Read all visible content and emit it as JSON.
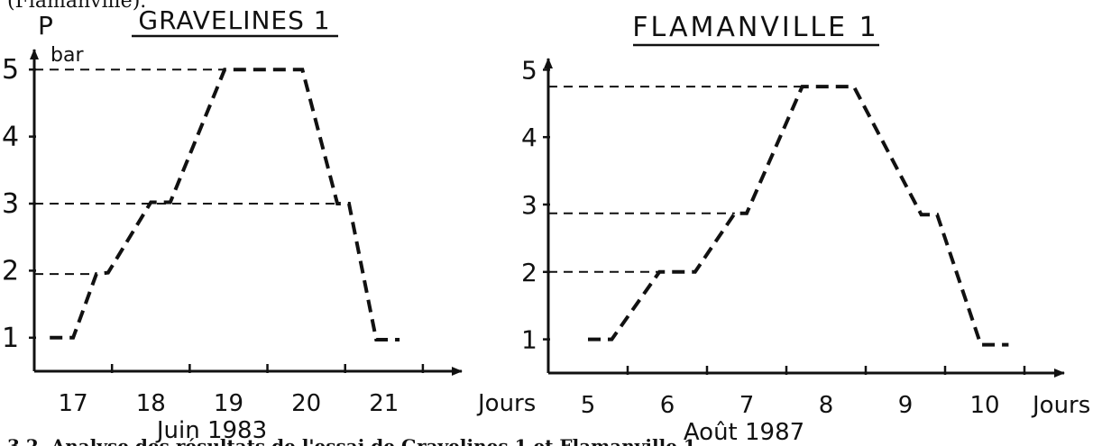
{
  "top_caption": "(Flamanville).",
  "bottom_caption": "3.2. Analyse des résultats de l'essai de Gravelines 1 et Flamanville 1",
  "chart_data": [
    {
      "type": "line",
      "title": "GRAVELINES 1",
      "ylabel_symbol": "P",
      "ylabel_unit": "bar",
      "xlabel": "Jours",
      "period": "Juin 1983",
      "x_ticks": [
        17,
        18,
        19,
        20,
        21
      ],
      "x_lim": [
        16.5,
        22
      ],
      "y_ticks": [
        1,
        2,
        3,
        4,
        5
      ],
      "y_lim": [
        0.5,
        5.5
      ],
      "guides_y": [
        5,
        3,
        1.95
      ],
      "series": [
        {
          "points": [
            {
              "x": 16.7,
              "y": 1.0
            },
            {
              "x": 17.0,
              "y": 1.0
            },
            {
              "x": 17.3,
              "y": 1.95
            },
            {
              "x": 17.45,
              "y": 1.97
            },
            {
              "x": 18.0,
              "y": 3.02
            },
            {
              "x": 18.25,
              "y": 3.02
            },
            {
              "x": 18.95,
              "y": 5.0
            },
            {
              "x": 19.95,
              "y": 5.0
            },
            {
              "x": 20.4,
              "y": 3.0
            },
            {
              "x": 20.55,
              "y": 3.0
            },
            {
              "x": 20.9,
              "y": 0.97
            },
            {
              "x": 21.2,
              "y": 0.97
            }
          ]
        }
      ]
    },
    {
      "type": "line",
      "title": "FLAMANVILLE 1",
      "ylabel_symbol": "",
      "ylabel_unit": "",
      "xlabel": "Jours",
      "period": "Août 1987",
      "x_ticks": [
        5,
        6,
        7,
        8,
        9,
        10
      ],
      "x_lim": [
        4.5,
        11
      ],
      "y_ticks": [
        1,
        2,
        3,
        4,
        5
      ],
      "y_lim": [
        0.5,
        5.5
      ],
      "guides_y": [
        4.75,
        2.87,
        2.0
      ],
      "series": [
        {
          "points": [
            {
              "x": 5.0,
              "y": 1.0
            },
            {
              "x": 5.3,
              "y": 1.0
            },
            {
              "x": 5.9,
              "y": 2.0
            },
            {
              "x": 6.35,
              "y": 2.0
            },
            {
              "x": 6.85,
              "y": 2.87
            },
            {
              "x": 7.0,
              "y": 2.87
            },
            {
              "x": 7.7,
              "y": 4.75
            },
            {
              "x": 8.35,
              "y": 4.75
            },
            {
              "x": 9.2,
              "y": 2.85
            },
            {
              "x": 9.4,
              "y": 2.85
            },
            {
              "x": 9.95,
              "y": 0.92
            },
            {
              "x": 10.3,
              "y": 0.92
            }
          ]
        }
      ]
    }
  ]
}
